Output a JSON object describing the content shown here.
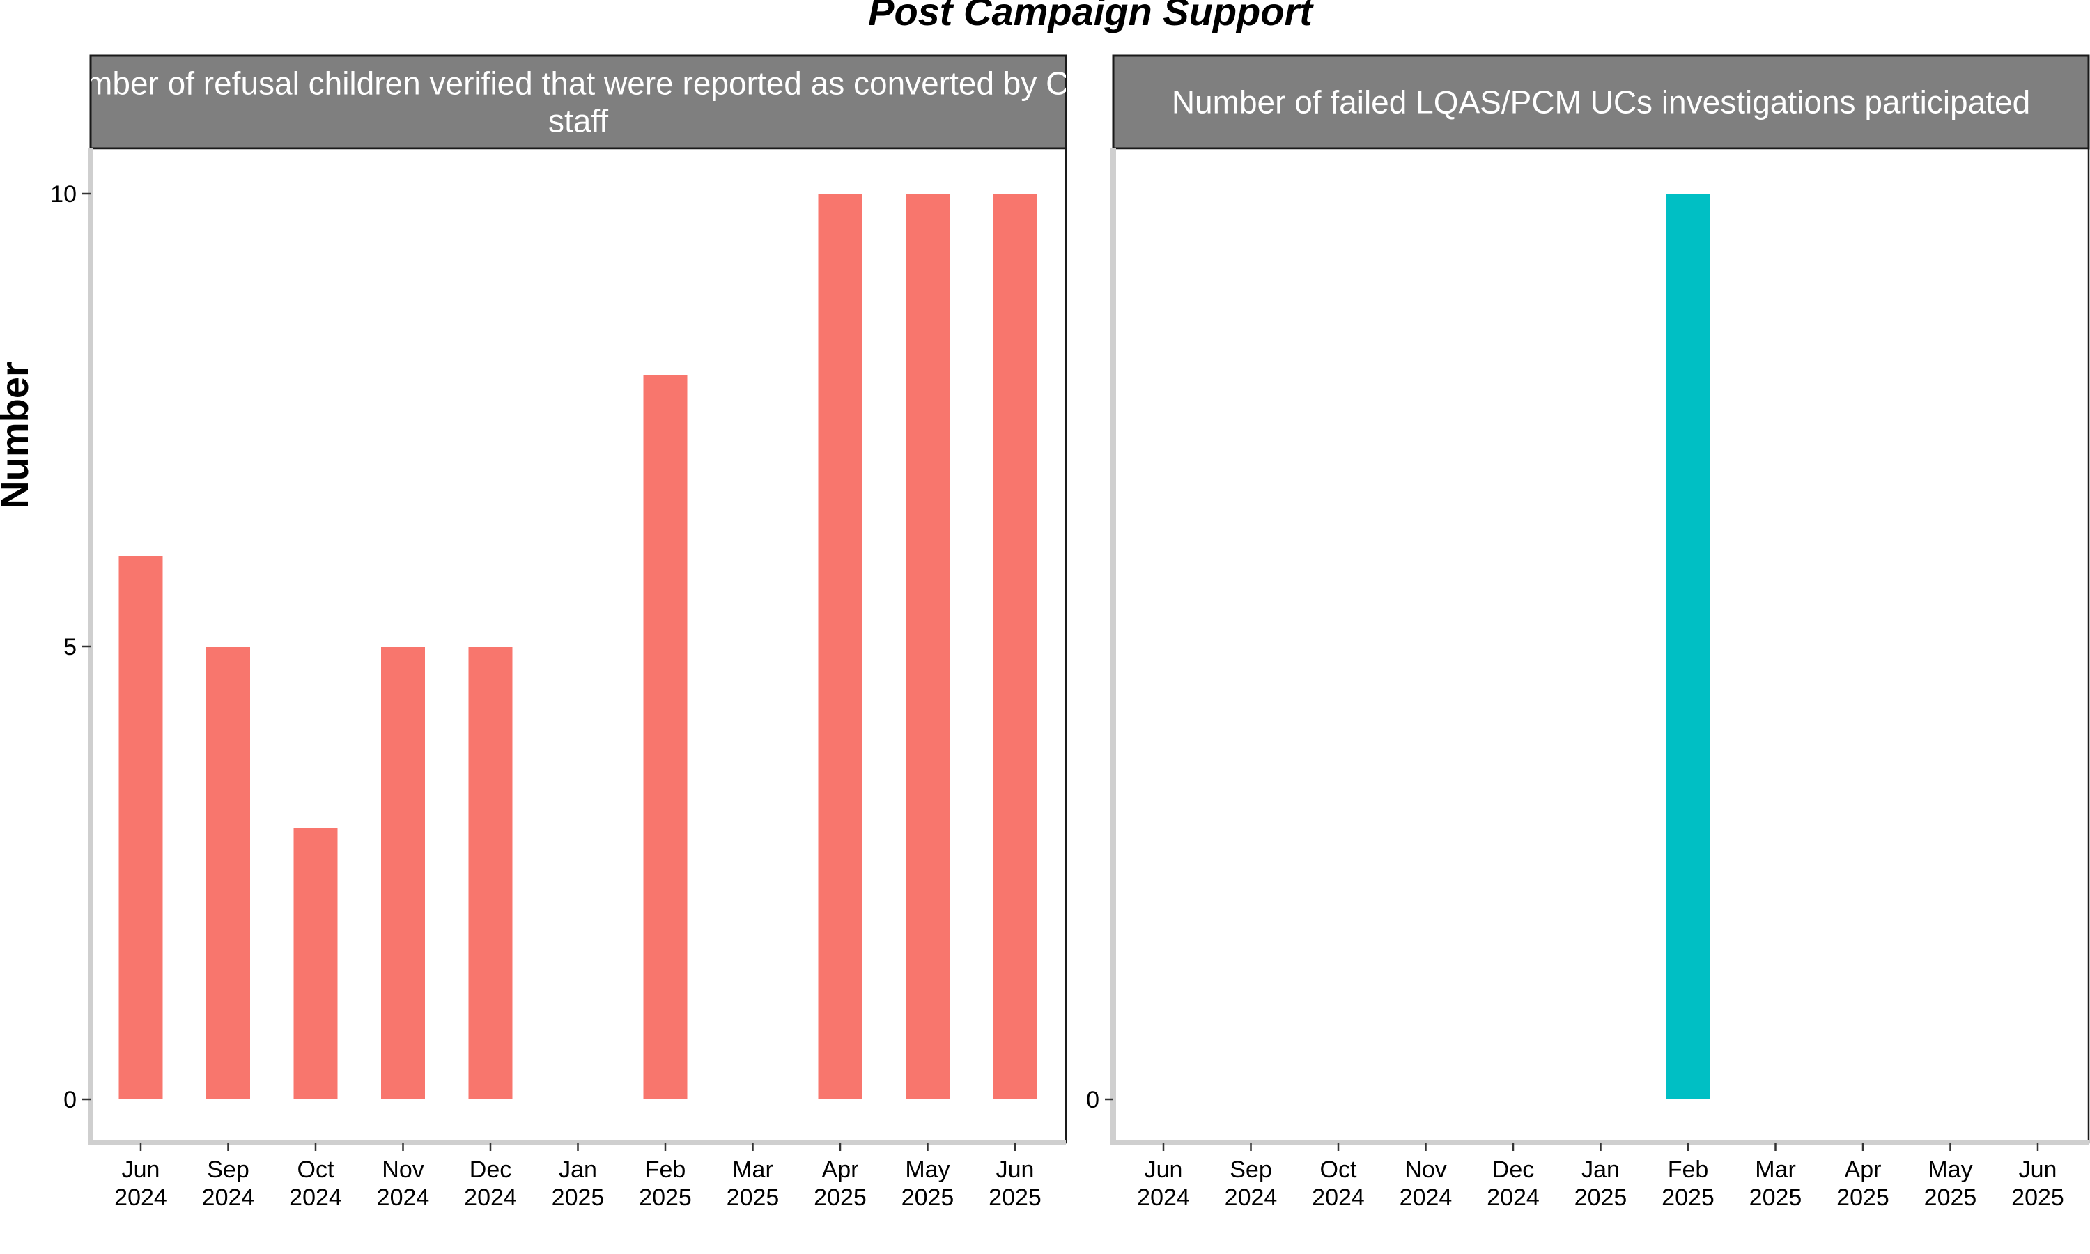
{
  "page": {
    "title": "Post Campaign Support",
    "ylabel": "Number"
  },
  "chart_data": [
    {
      "type": "bar",
      "strip_title": "Number of refusal children verified that were reported as converted by CES staff",
      "strip_title_lines": [
        "Number of refusal children verified that were reported as converted by CES",
        "staff"
      ],
      "categories": [
        "Jun 2024",
        "Sep 2024",
        "Oct 2024",
        "Nov 2024",
        "Dec 2024",
        "Jan 2025",
        "Feb 2025",
        "Mar 2025",
        "Apr 2025",
        "May 2025",
        "Jun 2025"
      ],
      "category_lines": [
        [
          "Jun",
          "2024"
        ],
        [
          "Sep",
          "2024"
        ],
        [
          "Oct",
          "2024"
        ],
        [
          "Nov",
          "2024"
        ],
        [
          "Dec",
          "2024"
        ],
        [
          "Jan",
          "2025"
        ],
        [
          "Feb",
          "2025"
        ],
        [
          "Mar",
          "2025"
        ],
        [
          "Apr",
          "2025"
        ],
        [
          "May",
          "2025"
        ],
        [
          "Jun",
          "2025"
        ]
      ],
      "values": [
        6,
        5,
        3,
        5,
        5,
        null,
        8,
        null,
        10,
        10,
        10
      ],
      "color": "#F8766D",
      "ylim": [
        -0.5,
        10.5
      ],
      "yticks": [
        0,
        5,
        10
      ],
      "xlabel": "",
      "ylabel": "Number"
    },
    {
      "type": "bar",
      "strip_title": "Number of failed LQAS/PCM UCs investigations participated",
      "strip_title_lines": [
        "Number of failed LQAS/PCM UCs investigations participated"
      ],
      "categories": [
        "Jun 2024",
        "Sep 2024",
        "Oct 2024",
        "Nov 2024",
        "Dec 2024",
        "Jan 2025",
        "Feb 2025",
        "Mar 2025",
        "Apr 2025",
        "May 2025",
        "Jun 2025"
      ],
      "category_lines": [
        [
          "Jun",
          "2024"
        ],
        [
          "Sep",
          "2024"
        ],
        [
          "Oct",
          "2024"
        ],
        [
          "Nov",
          "2024"
        ],
        [
          "Dec",
          "2024"
        ],
        [
          "Jan",
          "2025"
        ],
        [
          "Feb",
          "2025"
        ],
        [
          "Mar",
          "2025"
        ],
        [
          "Apr",
          "2025"
        ],
        [
          "May",
          "2025"
        ],
        [
          "Jun",
          "2025"
        ]
      ],
      "values": [
        null,
        null,
        null,
        null,
        null,
        null,
        10,
        null,
        null,
        null,
        null
      ],
      "color": "#00BFC4",
      "ylim": [
        -0.5,
        10.5
      ],
      "yticks": [
        0
      ],
      "ytick_positions": [
        0
      ],
      "xlabel": "",
      "ylabel": ""
    }
  ]
}
